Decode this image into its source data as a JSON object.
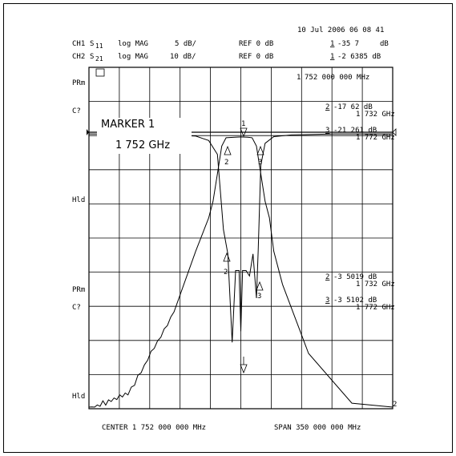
{
  "header": {
    "timestamp": "10 Jul 2006  06 08 41",
    "ch1": {
      "label": "CH1",
      "param": "S",
      "sub": "11",
      "format": "log MAG",
      "scale": "5 dB/",
      "ref": "REF 0 dB",
      "marker_num": "1",
      "marker_val": "-35 7",
      "marker_unit": "dB"
    },
    "ch2": {
      "label": "CH2",
      "param": "S",
      "sub": "21",
      "format": "log MAG",
      "scale": "10 dB/",
      "ref": "REF 0 dB",
      "marker_num": "1",
      "marker_val": "-2 6385 dB"
    }
  },
  "side_labels": {
    "prm_top": "PRm",
    "c_top": "C?",
    "hld_top": "Hld",
    "prm_bottom": "PRm",
    "c_bottom": "C?",
    "hld_bottom": "Hld"
  },
  "grid_icon_label": "▣",
  "marker_freq_readout": {
    "num": "1",
    "value": "752 000 000 MHz"
  },
  "marker_box": {
    "title": "MARKER 1",
    "freq": "1 752  GHz"
  },
  "upper_readouts": [
    {
      "num": "2",
      "val": "-17 62  dB",
      "freq": "1 732 GHz"
    },
    {
      "num": "3",
      "val": "-21 261 dB",
      "freq": "1 772 GHz"
    }
  ],
  "lower_readouts": [
    {
      "num": "2",
      "val": "-3 5019 dB",
      "freq": "1 732 GHz"
    },
    {
      "num": "3",
      "val": "-3 5102 dB",
      "freq": "1 772 GHz"
    }
  ],
  "marker_labels": {
    "m1": "1",
    "m2": "2",
    "m3": "3",
    "end": "2"
  },
  "footer": {
    "center": "CENTER 1 752 000 000 MHz",
    "span": "SPAN  350 000 000 MHz"
  },
  "chart_data": {
    "type": "line",
    "x_unit": "GHz",
    "xlim": [
      1.577,
      1.927
    ],
    "center_ghz": 1.752,
    "span_ghz": 0.35,
    "grid": {
      "x_divisions": 10,
      "y_divisions": 10,
      "on": true
    },
    "series": [
      {
        "param": "S21",
        "scale_db_per_div": 10,
        "ref_db": 0,
        "ylim": [
          -100,
          0
        ],
        "x": [
          1.577,
          1.622,
          1.675,
          1.7,
          1.715,
          1.72,
          1.725,
          1.73,
          1.735,
          1.745,
          1.752,
          1.76,
          1.765,
          1.77,
          1.775,
          1.78,
          1.785,
          1.79,
          1.8,
          1.83,
          1.88,
          1.927
        ],
        "y": [
          -100,
          -95,
          -65,
          -43,
          -31,
          -25,
          -15,
          -5,
          -2,
          -1.8,
          -1.7,
          -1.8,
          -2,
          -5,
          -15,
          -25,
          -31,
          -43,
          -55,
          -80,
          -98,
          -100
        ]
      },
      {
        "param": "S11",
        "scale_db_per_div": 5,
        "ref_db": 0,
        "ylim": [
          -50,
          0
        ],
        "x": [
          1.577,
          1.65,
          1.7,
          1.715,
          1.725,
          1.732,
          1.737,
          1.742,
          1.746,
          1.75,
          1.752,
          1.754,
          1.758,
          1.762,
          1.766,
          1.77,
          1.772,
          1.775,
          1.78,
          1.79,
          1.81,
          1.86,
          1.927
        ],
        "y": [
          -0.3,
          -0.4,
          -0.7,
          -1.5,
          -4,
          -17.6,
          -22,
          -38,
          -25,
          -25,
          -36,
          -25,
          -25,
          -26,
          -22,
          -30,
          -21.3,
          -6,
          -2,
          -0.8,
          -0.5,
          -0.3,
          -0.3
        ]
      }
    ],
    "markers": [
      {
        "id": 1,
        "freq_ghz": 1.752,
        "s11_db": -35.7,
        "s21_db": -2.6385
      },
      {
        "id": 2,
        "freq_ghz": 1.732,
        "s11_db": -17.62,
        "s21_db": -3.5019
      },
      {
        "id": 3,
        "freq_ghz": 1.772,
        "s11_db": -21.261,
        "s21_db": -3.5102
      }
    ]
  }
}
